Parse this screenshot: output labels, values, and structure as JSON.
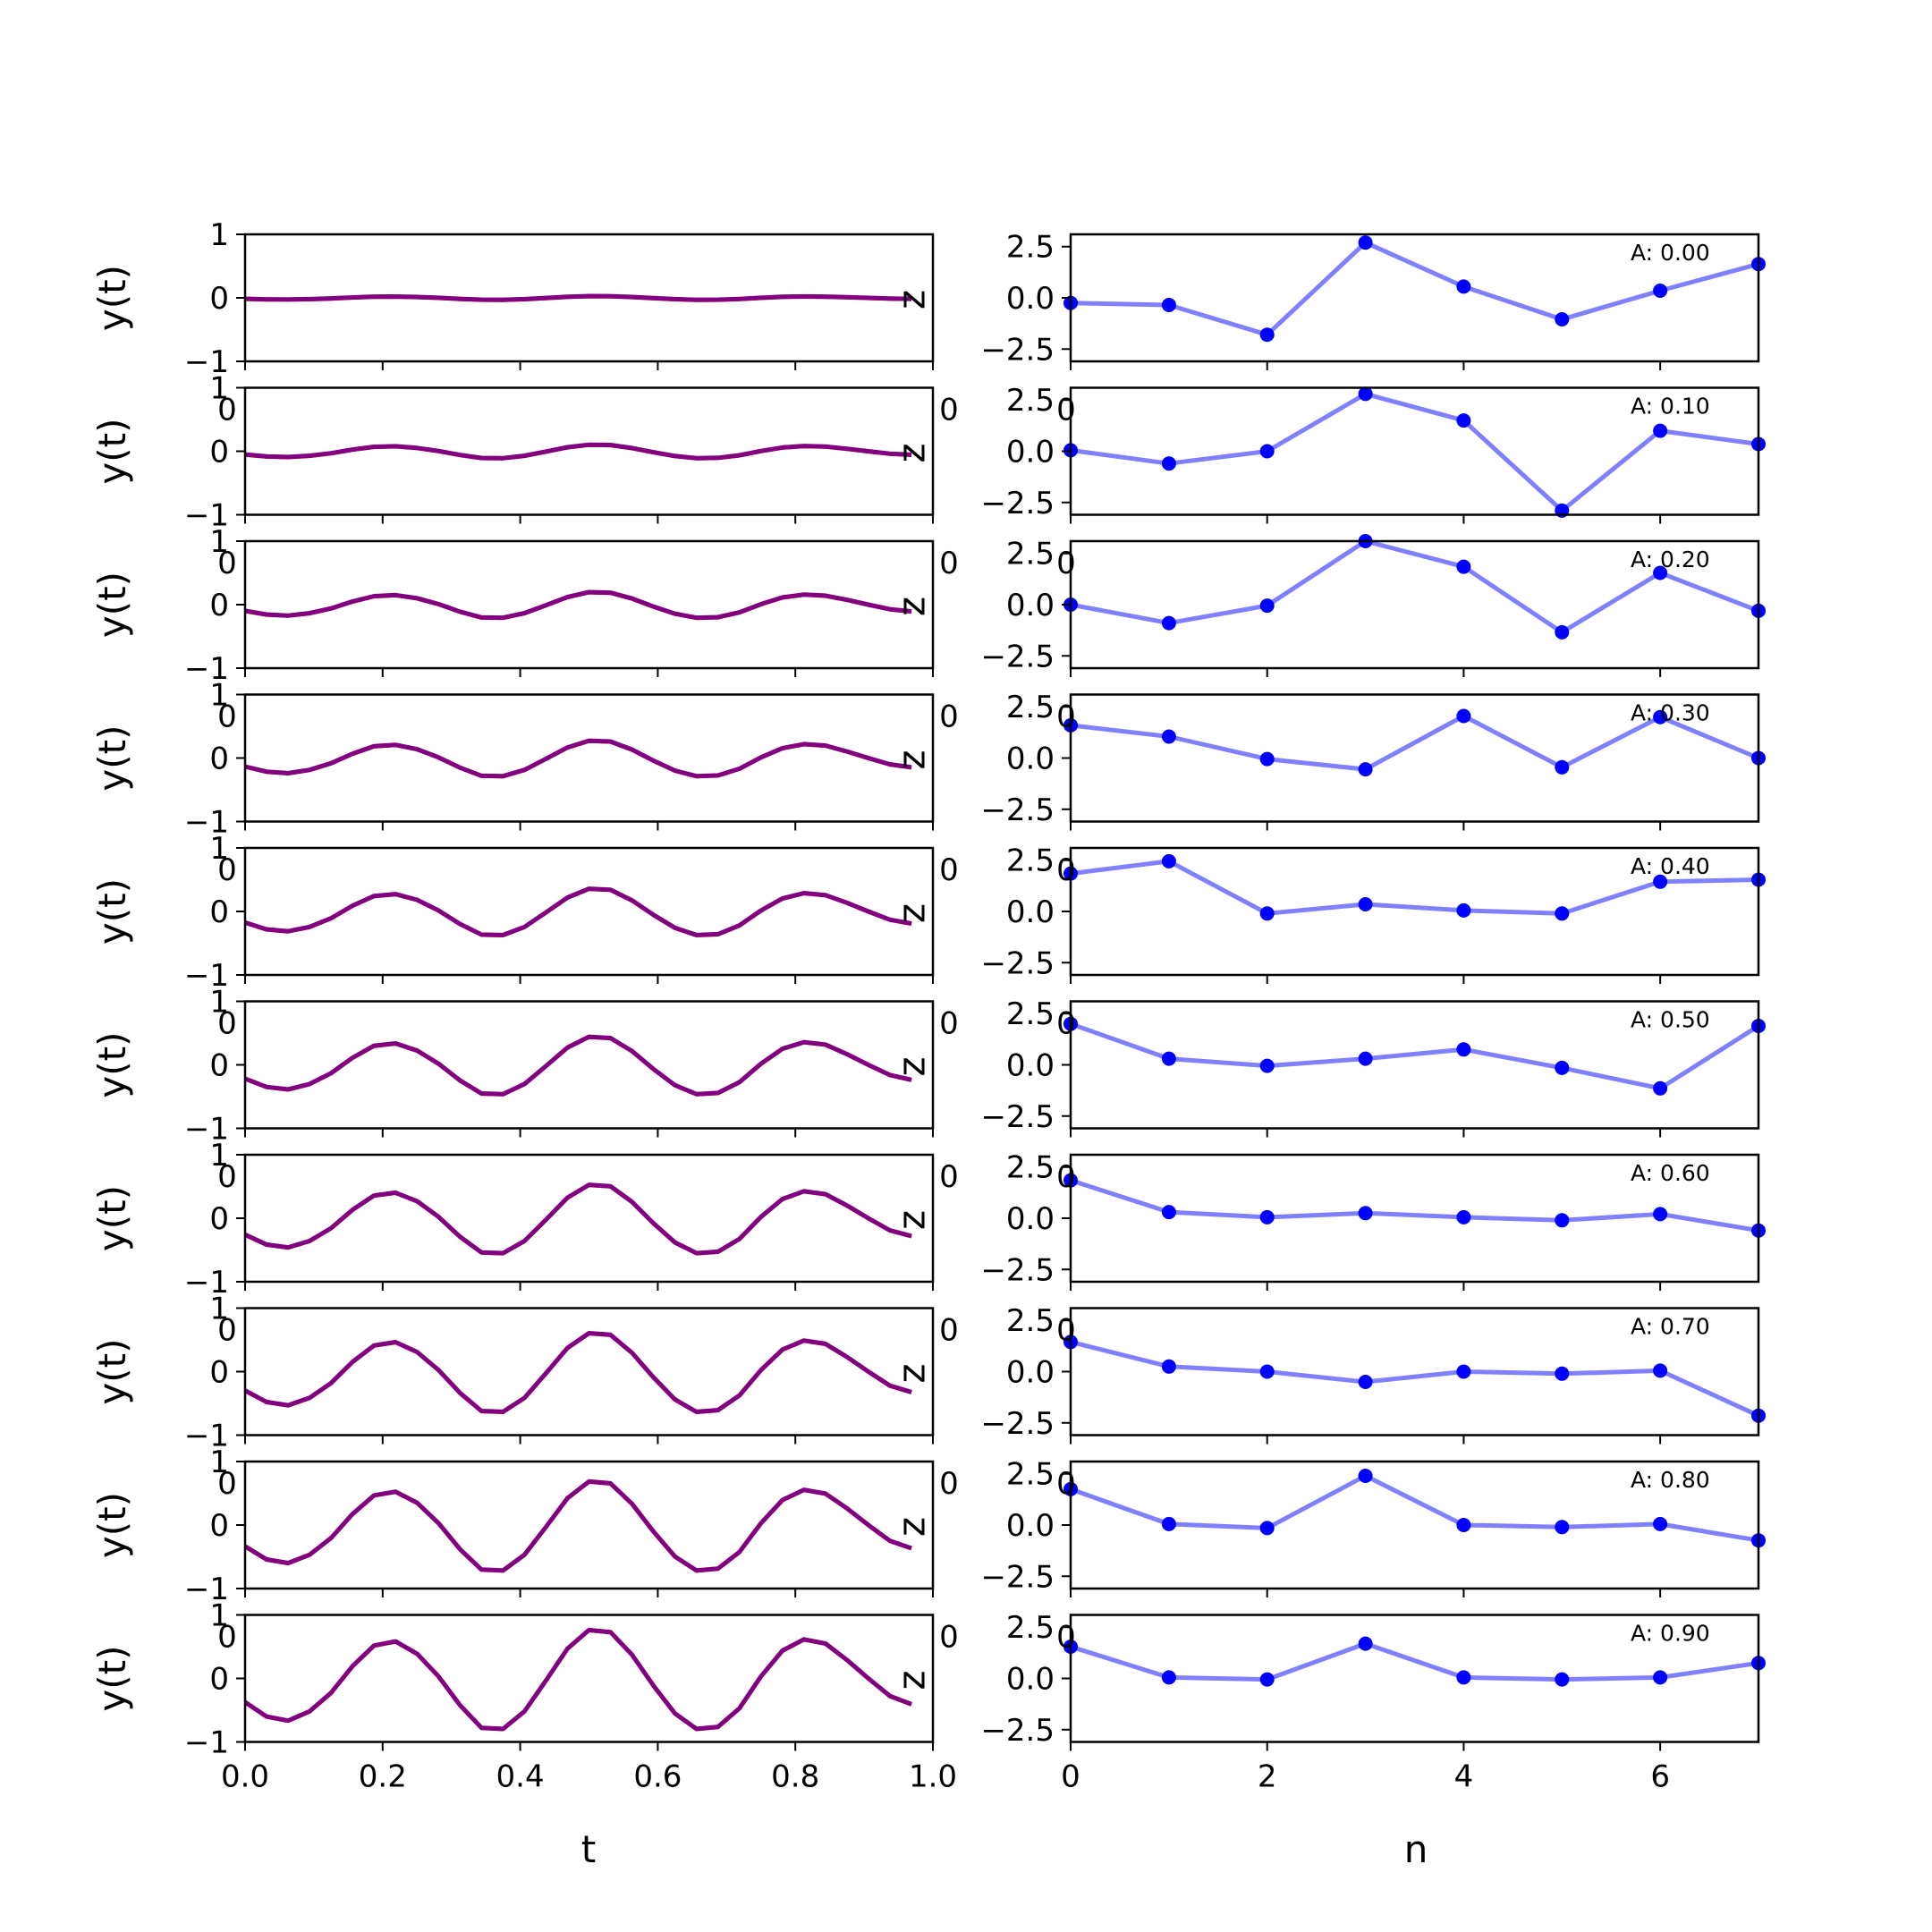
{
  "chart_data": {
    "type": "line",
    "left_panels": {
      "ylabel": "y(t)",
      "xlabel": "t",
      "ylim": [
        -1,
        1
      ],
      "xlim": [
        0,
        1
      ],
      "yticks": [
        "1",
        "0",
        "−1"
      ],
      "xticks": [
        "0.0",
        "0.2",
        "0.4",
        "0.6",
        "0.8",
        "1.0"
      ],
      "right_axis_label": "z",
      "stray_tick_labels": [
        "0",
        "0"
      ],
      "series_colors": [
        "#ff0000",
        "#0000ff",
        "#800080"
      ],
      "t": [
        0.0,
        0.03125,
        0.0625,
        0.09375,
        0.125,
        0.15625,
        0.1875,
        0.21875,
        0.25,
        0.28125,
        0.3125,
        0.34375,
        0.375,
        0.40625,
        0.4375,
        0.46875,
        0.5,
        0.53125,
        0.5625,
        0.59375,
        0.625,
        0.65625,
        0.6875,
        0.71875,
        0.75,
        0.78125,
        0.8125,
        0.84375,
        0.875,
        0.90625,
        0.9375,
        0.96875
      ],
      "base_shape": [
        -0.23,
        -0.37,
        -0.41,
        -0.32,
        -0.14,
        0.12,
        0.32,
        0.36,
        0.24,
        0.02,
        -0.26,
        -0.48,
        -0.49,
        -0.32,
        -0.02,
        0.29,
        0.47,
        0.45,
        0.23,
        -0.07,
        -0.34,
        -0.49,
        -0.47,
        -0.29,
        0.02,
        0.27,
        0.38,
        0.34,
        0.18,
        0.0,
        -0.17,
        -0.25
      ],
      "amplitude_scale": [
        0.06,
        0.22,
        0.42,
        0.58,
        0.76,
        0.94,
        1.12,
        1.29,
        1.46,
        1.62
      ]
    },
    "right_panels": {
      "xlabel": "n",
      "xlim": [
        0,
        7
      ],
      "ylim": [
        -3.1,
        3.1
      ],
      "yticks": [
        "2.5",
        "0.0",
        "−2.5"
      ],
      "xticks": [
        "0",
        "2",
        "4",
        "6"
      ],
      "line_color": "#8080ff",
      "marker_color": "#0000ff",
      "stray_tick_labels": [
        "0",
        "0"
      ]
    },
    "panels": [
      {
        "annotation": "A: 0.00",
        "n_values": [
          -0.25,
          -0.35,
          -1.8,
          2.7,
          0.55,
          -1.05,
          0.35,
          1.65
        ]
      },
      {
        "annotation": "A: 0.10",
        "n_values": [
          0.05,
          -0.6,
          0.0,
          2.8,
          1.5,
          -2.9,
          1.0,
          0.35
        ]
      },
      {
        "annotation": "A: 0.20",
        "n_values": [
          0.0,
          -0.9,
          -0.05,
          3.1,
          1.85,
          -1.35,
          1.55,
          -0.3
        ]
      },
      {
        "annotation": "A: 0.30",
        "n_values": [
          1.6,
          1.05,
          -0.05,
          -0.55,
          2.05,
          -0.45,
          2.0,
          0.0
        ]
      },
      {
        "annotation": "A: 0.40",
        "n_values": [
          1.85,
          2.45,
          -0.1,
          0.35,
          0.05,
          -0.1,
          1.45,
          1.55
        ]
      },
      {
        "annotation": "A: 0.50",
        "n_values": [
          2.0,
          0.3,
          -0.05,
          0.3,
          0.75,
          -0.15,
          -1.15,
          1.9
        ]
      },
      {
        "annotation": "A: 0.60",
        "n_values": [
          1.85,
          0.3,
          0.05,
          0.25,
          0.05,
          -0.1,
          0.2,
          -0.6
        ]
      },
      {
        "annotation": "A: 0.70",
        "n_values": [
          1.45,
          0.25,
          0.0,
          -0.5,
          0.0,
          -0.1,
          0.05,
          -2.15
        ]
      },
      {
        "annotation": "A: 0.80",
        "n_values": [
          1.75,
          0.05,
          -0.15,
          2.4,
          0.0,
          -0.1,
          0.05,
          -0.75
        ]
      },
      {
        "annotation": "A: 0.90",
        "n_values": [
          1.55,
          0.05,
          -0.05,
          1.7,
          0.05,
          -0.05,
          0.05,
          0.75
        ]
      }
    ]
  }
}
